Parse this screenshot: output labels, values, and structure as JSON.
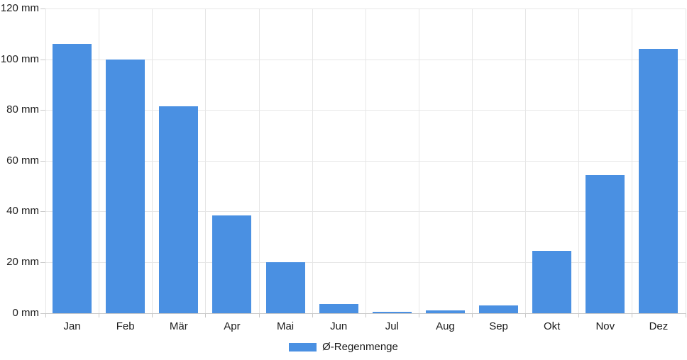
{
  "chart_data": {
    "type": "bar",
    "title": "",
    "xlabel": "",
    "ylabel": "",
    "unit": "mm",
    "categories": [
      "Jan",
      "Feb",
      "Mär",
      "Apr",
      "Mai",
      "Jun",
      "Jul",
      "Aug",
      "Sep",
      "Okt",
      "Nov",
      "Dez"
    ],
    "values": [
      106,
      100,
      81.5,
      38.5,
      20,
      3.5,
      0.5,
      1,
      3,
      24.5,
      54.5,
      104
    ],
    "series_name": "Ø-Regenmenge",
    "ylim": [
      0,
      120
    ],
    "yticks": [
      0,
      20,
      40,
      60,
      80,
      100,
      120
    ],
    "ytick_labels": [
      "0 mm",
      "20 mm",
      "40 mm",
      "60 mm",
      "80 mm",
      "100 mm",
      "120 mm"
    ],
    "grid": true,
    "legend_position": "bottom"
  },
  "legend": {
    "label": "Ø-Regenmenge"
  },
  "colors": {
    "bar": "#4a90e2",
    "grid": "#e6e6e6",
    "axis": "#c9c9c9",
    "text": "#1b1b1b"
  }
}
